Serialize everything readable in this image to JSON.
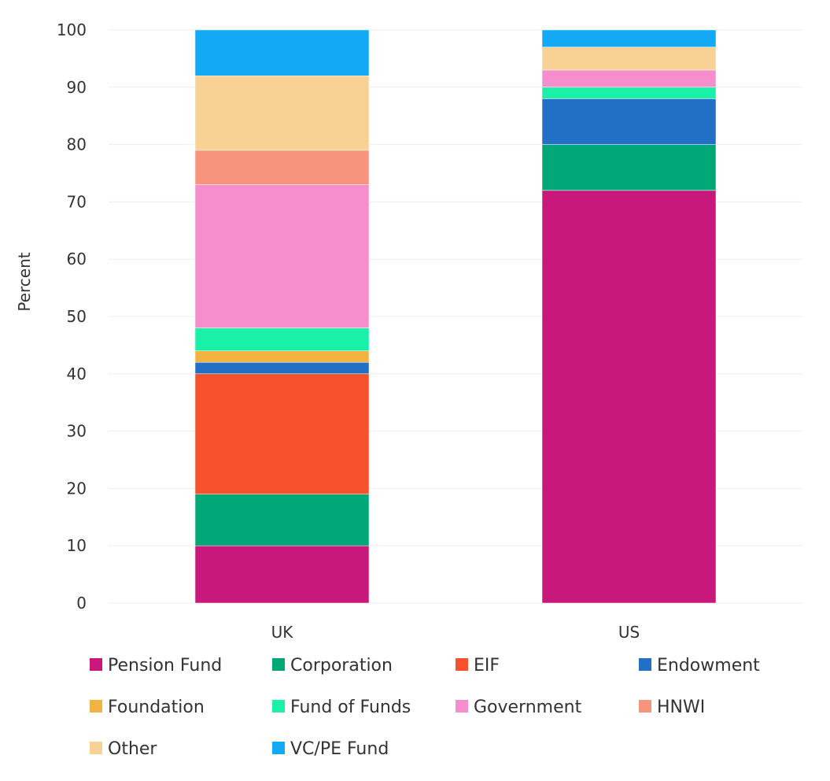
{
  "chart_data": {
    "type": "bar",
    "stacked": true,
    "title": "",
    "xlabel": "",
    "ylabel": "Percent",
    "ylim": [
      0,
      100
    ],
    "yticks": [
      0,
      10,
      20,
      30,
      40,
      50,
      60,
      70,
      80,
      90,
      100
    ],
    "categories": [
      "UK",
      "US"
    ],
    "series": [
      {
        "name": "Pension Fund",
        "color": "#c8187b",
        "values": [
          10,
          72
        ]
      },
      {
        "name": "Corporation",
        "color": "#00a878",
        "values": [
          9,
          8
        ]
      },
      {
        "name": "EIF",
        "color": "#f4512c",
        "values": [
          21,
          0
        ]
      },
      {
        "name": "Endowment",
        "color": "#226fc6",
        "values": [
          2,
          8
        ]
      },
      {
        "name": "Foundation",
        "color": "#f2b340",
        "values": [
          2,
          0
        ]
      },
      {
        "name": "Fund of Funds",
        "color": "#19f0a8",
        "values": [
          4,
          2
        ]
      },
      {
        "name": "Government",
        "color": "#f68dcd",
        "values": [
          25,
          3
        ]
      },
      {
        "name": "HNWI",
        "color": "#f6957b",
        "values": [
          6,
          0
        ]
      },
      {
        "name": "Other",
        "color": "#f8d295",
        "values": [
          13,
          4
        ]
      },
      {
        "name": "VC/PE Fund",
        "color": "#13a9f4",
        "values": [
          8,
          3
        ]
      }
    ],
    "legend_position": "bottom",
    "grid": true
  }
}
